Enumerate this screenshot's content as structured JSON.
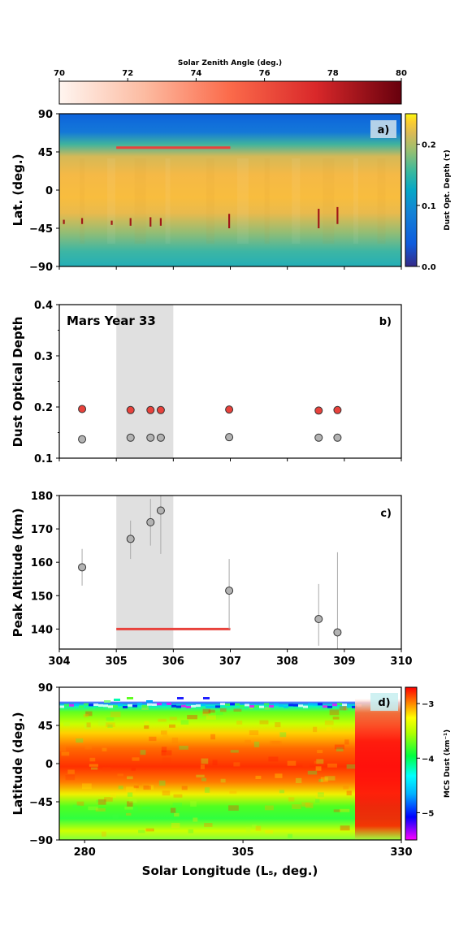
{
  "colors": {
    "red_marker": "#e8423c",
    "gray_marker": "#b3b3b3",
    "shade": "#e0e0e0",
    "red_line": "#e8423c"
  },
  "chart_data": [
    {
      "panel": "colorbar-top",
      "type": "colorbar",
      "title": "Solar Zenith Angle (deg.)",
      "range": [
        70,
        80
      ],
      "ticks": [
        "70",
        "72",
        "74",
        "76",
        "78",
        "80"
      ]
    },
    {
      "panel": "a)",
      "type": "heatmap",
      "ylabel": "Lat. (deg.)",
      "ylim": [
        -90,
        90
      ],
      "yticks": [
        "90",
        "45",
        "0",
        "−45",
        "−90"
      ],
      "xlim": [
        304,
        310
      ],
      "colorbar": {
        "title": "Dust Opt. Depth (τ)",
        "range": [
          0.0,
          0.25
        ],
        "ticks": [
          "0.2",
          "0.1",
          "0.0"
        ]
      },
      "red_line": {
        "x": [
          305.0,
          307.0
        ],
        "y": 50
      },
      "markers": [
        {
          "x": 304.08,
          "lat": [
            -35,
            -40
          ]
        },
        {
          "x": 304.4,
          "lat": [
            -33,
            -40
          ]
        },
        {
          "x": 304.92,
          "lat": [
            -36,
            -41
          ]
        },
        {
          "x": 305.25,
          "lat": [
            -33,
            -42
          ]
        },
        {
          "x": 305.6,
          "lat": [
            -32,
            -43
          ]
        },
        {
          "x": 305.78,
          "lat": [
            -33,
            -42
          ]
        },
        {
          "x": 306.98,
          "lat": [
            -28,
            -45
          ]
        },
        {
          "x": 308.55,
          "lat": [
            -22,
            -45
          ]
        },
        {
          "x": 308.88,
          "lat": [
            -20,
            -40
          ]
        }
      ]
    },
    {
      "panel": "b)",
      "type": "scatter",
      "annotation": "Mars Year 33",
      "ylabel": "Dust Optical Depth",
      "ylim": [
        0.1,
        0.4
      ],
      "yticks": [
        "0.4",
        "0.3",
        "0.2",
        "0.1"
      ],
      "xlim": [
        304,
        310
      ],
      "shaded_x": [
        305,
        306
      ],
      "series": [
        {
          "x": [
            304.4,
            305.25,
            305.6,
            305.78,
            306.98,
            308.55,
            308.88
          ],
          "values": [
            0.196,
            0.194,
            0.194,
            0.194,
            0.195,
            0.193,
            0.194
          ]
        },
        {
          "x": [
            304.4,
            305.25,
            305.6,
            305.78,
            306.98,
            308.55,
            308.88
          ],
          "values": [
            0.137,
            0.14,
            0.14,
            0.14,
            0.141,
            0.14,
            0.14
          ]
        }
      ]
    },
    {
      "panel": "c)",
      "type": "scatter",
      "ylabel": "Peak Altitude (km)",
      "ylim": [
        134,
        180
      ],
      "yticks": [
        "180",
        "170",
        "160",
        "150",
        "140"
      ],
      "xlim": [
        304,
        310
      ],
      "xticks": [
        "304",
        "305",
        "306",
        "307",
        "308",
        "309",
        "310"
      ],
      "shaded_x": [
        305,
        306
      ],
      "red_line": {
        "x": [
          305.0,
          307.0
        ],
        "y": 140
      },
      "points": [
        {
          "x": 304.4,
          "y": 158.5,
          "err": [
            153,
            164
          ]
        },
        {
          "x": 305.25,
          "y": 167,
          "err": [
            161,
            172.5
          ]
        },
        {
          "x": 305.6,
          "y": 172,
          "err": [
            165,
            179
          ]
        },
        {
          "x": 305.78,
          "y": 175.5,
          "err": [
            162.5,
            180
          ]
        },
        {
          "x": 306.98,
          "y": 151.5,
          "err": [
            140,
            161
          ]
        },
        {
          "x": 308.55,
          "y": 143,
          "err": [
            135,
            153.5
          ]
        },
        {
          "x": 308.88,
          "y": 139,
          "err": [
            134,
            163
          ]
        }
      ]
    },
    {
      "panel": "d)",
      "type": "heatmap",
      "xlabel": "Solar Longitude (Lₛ, deg.)",
      "ylabel": "Latitude (deg.)",
      "xlim": [
        276,
        330
      ],
      "xticks": [
        "280",
        "305",
        "330"
      ],
      "ylim": [
        -90,
        90
      ],
      "yticks": [
        "90",
        "45",
        "0",
        "−45",
        "−90"
      ],
      "colorbar": {
        "title": "MCS Dust (km⁻¹)",
        "range": [
          -5.5,
          -2.7
        ],
        "ticks": [
          "−3",
          "−4",
          "−5"
        ]
      }
    }
  ]
}
